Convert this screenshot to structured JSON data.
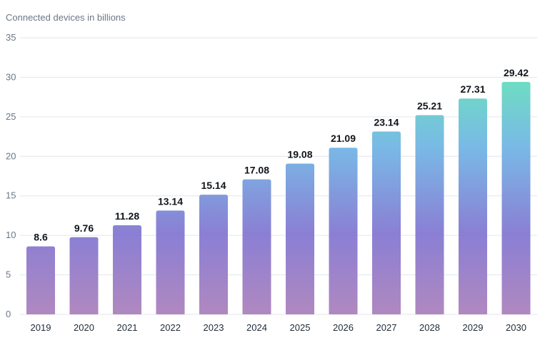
{
  "chart_data": {
    "type": "bar",
    "title": "",
    "ylabel": "Connected devices in billions",
    "xlabel": "",
    "ylim": [
      0,
      35
    ],
    "yticks": [
      0,
      5,
      10,
      15,
      20,
      25,
      30,
      35
    ],
    "grid": true,
    "categories": [
      "2019",
      "2020",
      "2021",
      "2022",
      "2023",
      "2024",
      "2025",
      "2026",
      "2027",
      "2028",
      "2029",
      "2030"
    ],
    "values": [
      8.6,
      9.76,
      11.28,
      13.14,
      15.14,
      17.08,
      19.08,
      21.09,
      23.14,
      25.21,
      27.31,
      29.42
    ],
    "value_labels": [
      "8.6",
      "9.76",
      "11.28",
      "13.14",
      "15.14",
      "17.08",
      "19.08",
      "21.09",
      "23.14",
      "25.21",
      "27.31",
      "29.42"
    ],
    "colors": {
      "gradient_bottom": "#b088c0",
      "gradient_lower_mid": "#8a7fd4",
      "gradient_upper_mid": "#79b9e6",
      "gradient_top": "#6edcc3",
      "grid": "#e3e6ea",
      "tick_text": "#6b7785",
      "label_text": "#11161c"
    }
  }
}
